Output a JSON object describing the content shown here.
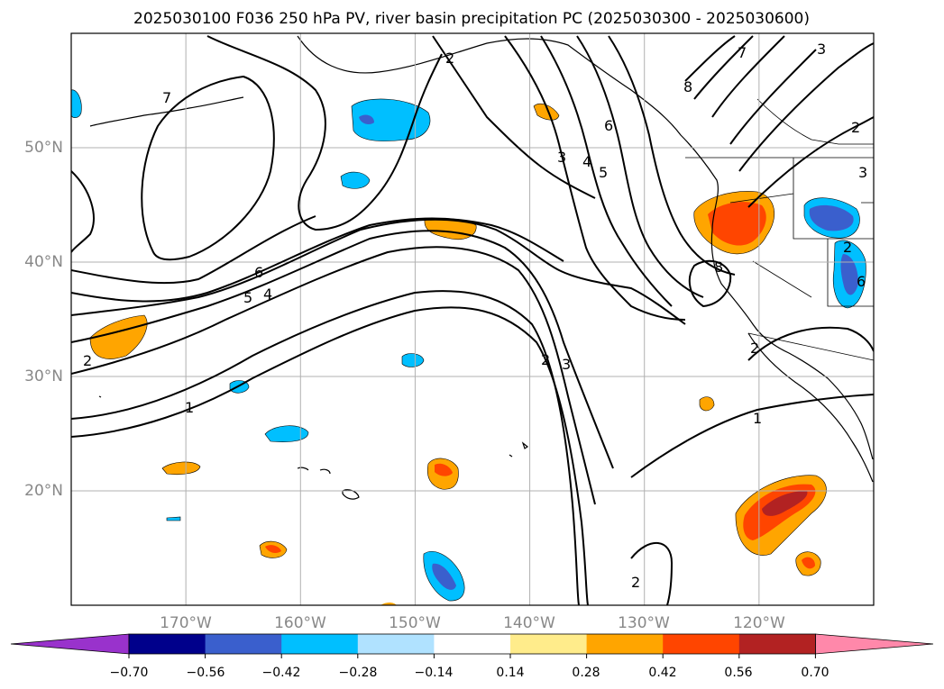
{
  "title": "2025030100 F036 250 hPa PV, river basin precipitation PC (2025030300 - 2025030600)",
  "map": {
    "lon_range": [
      -180,
      -110
    ],
    "lat_range": [
      10,
      60
    ],
    "lat_labels": [
      "50°N",
      "40°N",
      "30°N",
      "20°N"
    ],
    "lon_labels": [
      "170°W",
      "160°W",
      "150°W",
      "140°W",
      "130°W",
      "120°W"
    ],
    "grid": true,
    "contour_variable": "250 hPa PV",
    "fill_variable": "river basin precipitation PC"
  },
  "contour_labels": [
    "7",
    "2",
    "8",
    "7",
    "3",
    "6",
    "3",
    "4",
    "5",
    "2",
    "3",
    "6",
    "5",
    "4",
    "8",
    "2",
    "2",
    "3",
    "1",
    "2",
    "2",
    "1",
    "6",
    "2"
  ],
  "colorbar": {
    "ticks": [
      "−0.70",
      "−0.56",
      "−0.42",
      "−0.28",
      "−0.14",
      "0.14",
      "0.28",
      "0.42",
      "0.56",
      "0.70"
    ],
    "colors": [
      "#9932CC",
      "#00008B",
      "#3A5FCD",
      "#00BFFF",
      "#B0E2FF",
      "#FFFFFF",
      "#FFEC8B",
      "#FFA500",
      "#FF4500",
      "#B22222",
      "#FF88AA"
    ],
    "extend": "both"
  }
}
